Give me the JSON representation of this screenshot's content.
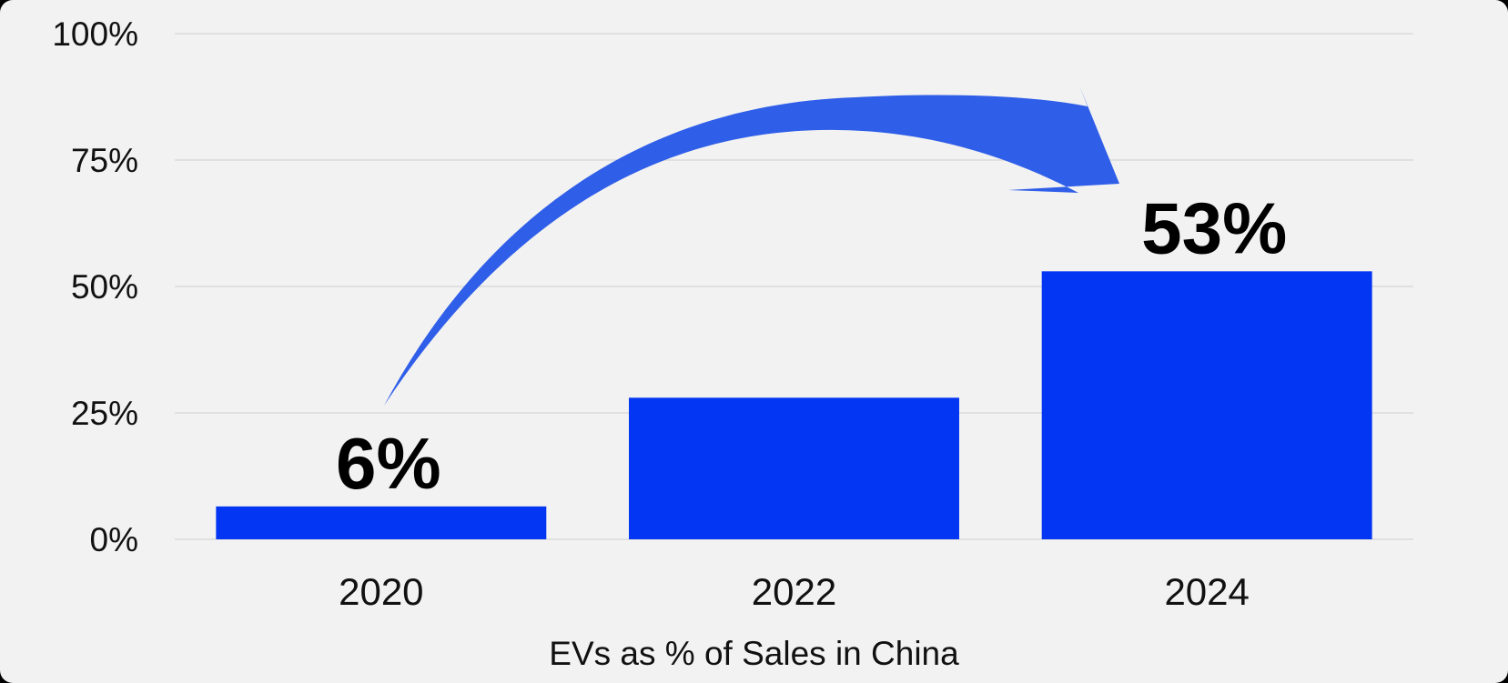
{
  "chart_data": {
    "type": "bar",
    "categories": [
      "2020",
      "2022",
      "2024"
    ],
    "values": [
      6.5,
      28,
      53
    ],
    "data_labels": [
      "6%",
      "",
      "53%"
    ],
    "xlabel": "EVs as % of Sales in China",
    "ylabel": "",
    "ylim": [
      0,
      100
    ],
    "yticks": [
      0,
      25,
      50,
      75,
      100
    ],
    "ytick_labels": [
      "0%",
      "25%",
      "50%",
      "75%",
      "100%"
    ],
    "grid": true,
    "legend": "none",
    "annotation": "curved-arrow-from-2020-to-2024",
    "colors": {
      "bar": "#0336f3",
      "arrow": "#2f5ee8",
      "background": "#f2f2f2",
      "grid": "#d9d9d9"
    }
  }
}
